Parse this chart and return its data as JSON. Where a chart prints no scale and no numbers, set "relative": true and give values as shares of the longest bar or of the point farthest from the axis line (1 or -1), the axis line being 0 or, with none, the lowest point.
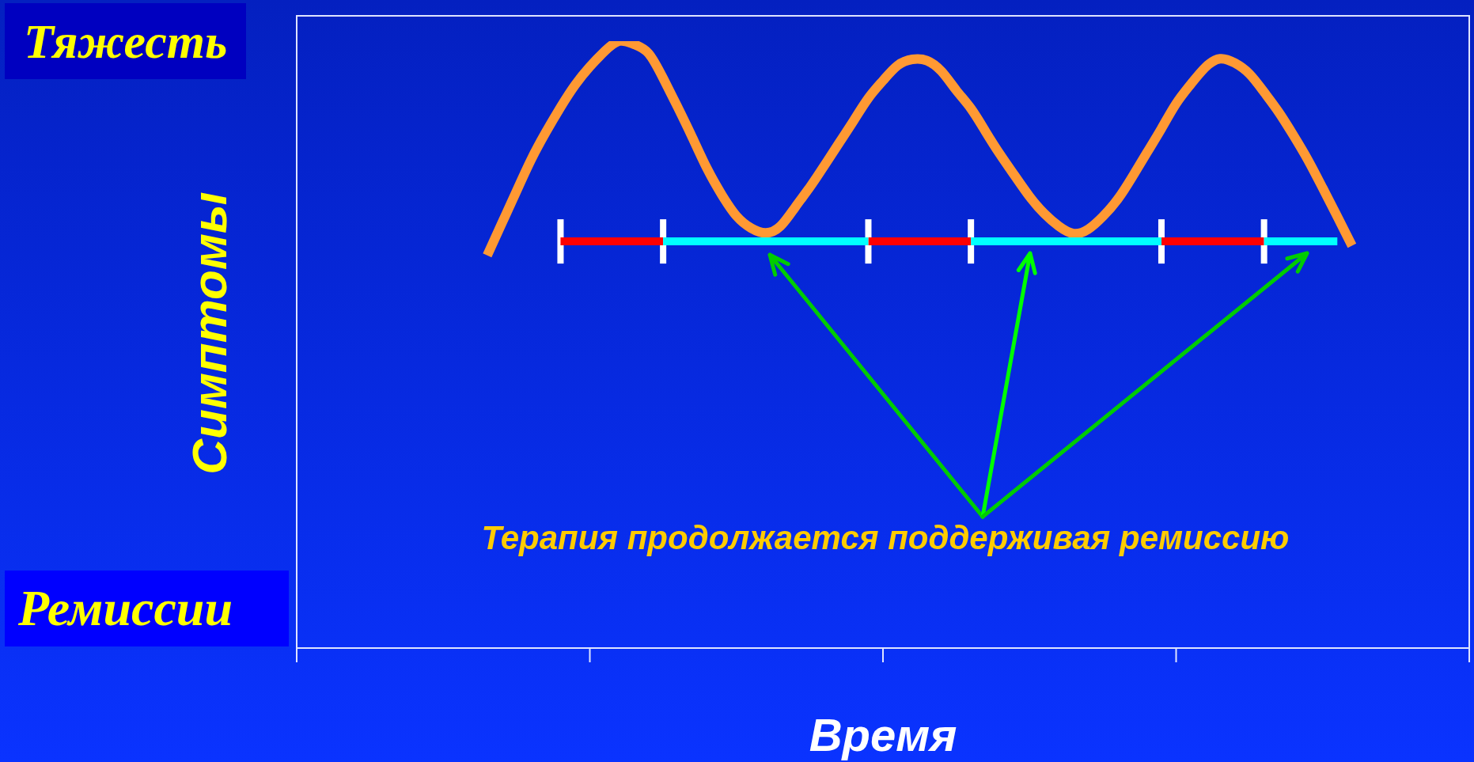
{
  "chart_data": {
    "type": "line",
    "relative": true,
    "xlabel": "Время",
    "ylabel": "Симптомы",
    "annotations": [
      "Тяжесть",
      "Ремиссии",
      "Терапия продолжается поддерживая ремиссию"
    ],
    "categories": [
      null,
      null,
      null,
      null,
      null,
      null,
      null,
      null,
      null,
      null,
      null,
      null,
      null,
      null,
      null,
      null,
      null,
      null,
      null,
      null,
      null,
      null,
      null,
      null,
      null,
      null,
      null,
      null,
      null,
      null,
      null,
      null,
      null,
      null,
      null,
      null,
      null,
      null,
      null,
      null,
      null,
      null,
      null,
      null,
      null,
      null,
      null,
      null,
      null,
      null,
      null,
      null,
      null,
      null,
      null,
      null,
      null,
      null,
      null,
      null,
      null,
      null,
      null,
      null,
      null,
      null,
      null,
      null,
      null,
      null,
      null,
      null,
      null,
      null,
      null,
      null,
      null,
      null,
      null,
      null,
      null
    ],
    "marker": "none",
    "series": [
      {
        "color": "#ff9933",
        "values": [
          null,
          null,
          null,
          null,
          null,
          null,
          null,
          null,
          null,
          null,
          null,
          null,
          null,
          0.647,
          0.7,
          0.753,
          0.805,
          0.85,
          0.891,
          0.928,
          0.958,
          0.983,
          1.0,
          0.995,
          0.98,
          0.939,
          0.891,
          0.841,
          0.79,
          0.747,
          0.712,
          0.692,
          0.684,
          0.695,
          0.726,
          0.759,
          0.795,
          0.832,
          0.869,
          0.906,
          0.935,
          0.96,
          0.97,
          0.968,
          0.95,
          0.919,
          0.889,
          0.851,
          0.813,
          0.778,
          0.744,
          0.716,
          0.695,
          0.683,
          0.69,
          0.711,
          0.739,
          0.776,
          0.816,
          0.856,
          0.897,
          0.929,
          0.957,
          0.971,
          0.964,
          0.946,
          0.916,
          0.883,
          0.845,
          0.804,
          0.758,
          0.711,
          0.663,
          null,
          null,
          null,
          null,
          null,
          null,
          null,
          null
        ]
      },
      {
        "color": "#ff0000",
        "values": [
          null,
          null,
          null,
          null,
          null,
          null,
          null,
          null,
          null,
          null,
          null,
          null,
          null,
          null,
          null,
          null,
          null,
          null,
          0.67,
          0.67,
          0.67,
          0.67,
          0.67,
          0.67,
          0.67,
          0.67,
          null,
          null,
          null,
          null,
          null,
          null,
          null,
          null,
          null,
          null,
          null,
          null,
          null,
          0.67,
          0.67,
          0.67,
          0.67,
          0.67,
          0.67,
          0.67,
          0.67,
          null,
          null,
          null,
          null,
          null,
          null,
          null,
          null,
          null,
          null,
          null,
          null,
          0.67,
          0.67,
          0.67,
          0.67,
          0.67,
          0.67,
          0.67,
          0.67,
          null,
          null,
          null,
          null,
          null,
          null,
          null,
          null,
          null,
          null,
          null,
          null,
          null,
          null
        ]
      },
      {
        "color": "#00ffff",
        "values": [
          null,
          null,
          null,
          null,
          null,
          null,
          null,
          null,
          null,
          null,
          null,
          null,
          null,
          null,
          null,
          null,
          null,
          null,
          null,
          null,
          null,
          null,
          null,
          null,
          null,
          0.67,
          0.67,
          0.67,
          0.67,
          0.67,
          0.67,
          0.67,
          0.67,
          0.67,
          0.67,
          0.67,
          0.67,
          0.67,
          0.67,
          0.67,
          null,
          null,
          null,
          null,
          null,
          null,
          0.67,
          0.67,
          0.67,
          0.67,
          0.67,
          0.67,
          0.67,
          0.67,
          0.67,
          0.67,
          0.67,
          0.67,
          0.67,
          0.67,
          null,
          null,
          null,
          null,
          null,
          null,
          0.67,
          0.67,
          0.67,
          0.67,
          0.67,
          0.67,
          null,
          null,
          null,
          null,
          null,
          null,
          null,
          null,
          null
        ]
      }
    ]
  }
}
